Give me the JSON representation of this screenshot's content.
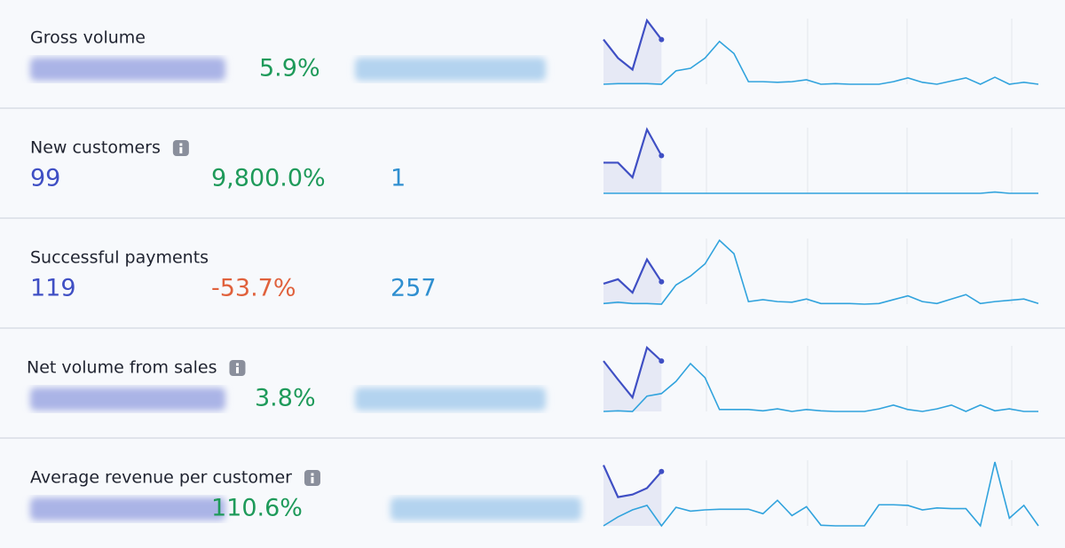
{
  "rows": [
    {
      "label": "Gross volume",
      "info": false,
      "change": "5.9%",
      "change_color": "#1e9a5a",
      "current": [
        70,
        41,
        23,
        100,
        70
      ],
      "previous_series": [
        0,
        1,
        1,
        1,
        0,
        21,
        25,
        41,
        67,
        48,
        4,
        4,
        3,
        4,
        7,
        0,
        1,
        0,
        0,
        0,
        4,
        10,
        3,
        0,
        5,
        10,
        0,
        11,
        0,
        3,
        0
      ]
    },
    {
      "label": "New customers",
      "info": true,
      "value": "99",
      "change": "9,800.0%",
      "change_color": "#1e9a5a",
      "previous": "1",
      "current": [
        48,
        48,
        25,
        100,
        59
      ],
      "previous_series": [
        0,
        0,
        0,
        0,
        0,
        0,
        0,
        0,
        0,
        0,
        0,
        0,
        0,
        0,
        0,
        0,
        0,
        0,
        0,
        0,
        0,
        0,
        0,
        0,
        0,
        0,
        0,
        2,
        0,
        0,
        0
      ]
    },
    {
      "label": "Successful payments",
      "info": false,
      "value": "119",
      "change": "-53.7%",
      "change_color": "#e0613c",
      "previous": "257",
      "current": [
        32,
        39,
        18,
        70,
        35
      ],
      "previous_series": [
        1,
        3,
        1,
        1,
        0,
        30,
        44,
        63,
        100,
        79,
        4,
        7,
        4,
        3,
        8,
        1,
        1,
        1,
        0,
        1,
        7,
        13,
        4,
        1,
        8,
        15,
        1,
        4,
        6,
        8,
        1
      ]
    },
    {
      "label": "Net volume from sales",
      "info": true,
      "change": "3.8%",
      "change_color": "#1e9a5a",
      "current": [
        79,
        50,
        22,
        100,
        79
      ],
      "previous_series": [
        0,
        1,
        0,
        24,
        28,
        47,
        75,
        53,
        3,
        3,
        3,
        1,
        4,
        0,
        3,
        1,
        0,
        0,
        0,
        4,
        10,
        3,
        0,
        4,
        10,
        0,
        10,
        1,
        4,
        0,
        0
      ]
    },
    {
      "label": "Average revenue per customer",
      "info": true,
      "change": "110.6%",
      "change_color": "#1e9a5a",
      "current": [
        95,
        45,
        49,
        59,
        85
      ],
      "previous_series": [
        0,
        14,
        25,
        32,
        0,
        29,
        23,
        25,
        26,
        26,
        26,
        19,
        40,
        16,
        30,
        1,
        0,
        0,
        0,
        33,
        33,
        32,
        25,
        28,
        27,
        27,
        0,
        100,
        12,
        32,
        0
      ]
    }
  ]
}
